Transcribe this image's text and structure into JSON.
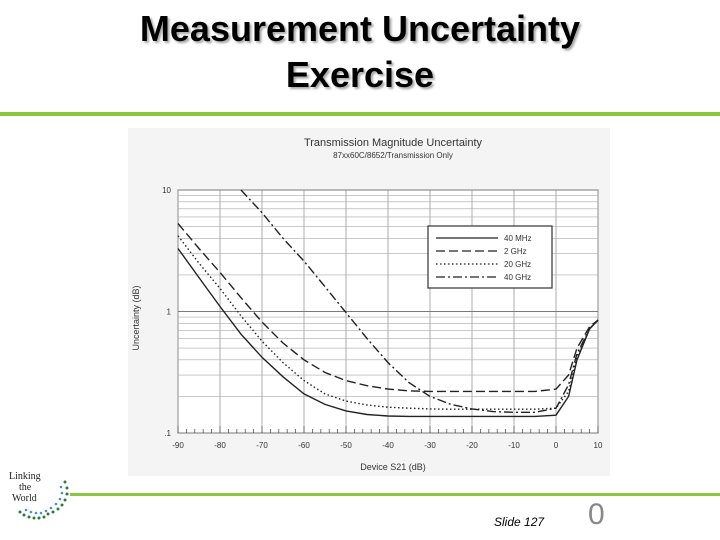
{
  "slide": {
    "title_line1": "Measurement Uncertainty",
    "title_line2": "Exercise",
    "slide_number": "Slide 127",
    "page_mark": "0",
    "logo_text": [
      "Linking",
      "the",
      "World"
    ],
    "accent_color": "#8cc63f"
  },
  "chart_data": {
    "type": "line",
    "title": "Transmission Magnitude Uncertainty",
    "subtitle": "87xx60C/8652/Transmission Only",
    "xlabel": "Device S21 (dB)",
    "ylabel": "Uncertainty (dB)",
    "xlim": [
      -90,
      10
    ],
    "ylim": [
      0.1,
      10
    ],
    "yscale": "log",
    "x_ticks": [
      "-90",
      "-80",
      "-70",
      "-60",
      "-50",
      "-40",
      "-30",
      "-20",
      "-10",
      "0",
      "10"
    ],
    "y_ticks": [
      "10",
      "1",
      ".1"
    ],
    "grid": true,
    "legend_position": "top-right",
    "series": [
      {
        "name": "40 MHz",
        "dash": "solid",
        "x": [
          -90,
          -85,
          -80,
          -75,
          -70,
          -65,
          -60,
          -55,
          -50,
          -45,
          -40,
          -35,
          -30,
          -25,
          -20,
          -15,
          -10,
          -5,
          0,
          3,
          5,
          8,
          10
        ],
        "y": [
          3.3,
          1.9,
          1.1,
          0.65,
          0.42,
          0.29,
          0.21,
          0.172,
          0.152,
          0.142,
          0.138,
          0.137,
          0.137,
          0.137,
          0.137,
          0.137,
          0.137,
          0.137,
          0.14,
          0.2,
          0.4,
          0.72,
          0.85
        ]
      },
      {
        "name": "2 GHz",
        "dash": "dashed",
        "x": [
          -90,
          -85,
          -80,
          -75,
          -70,
          -65,
          -60,
          -55,
          -50,
          -45,
          -40,
          -35,
          -30,
          -25,
          -20,
          -15,
          -10,
          -5,
          0,
          3,
          5,
          8,
          10
        ],
        "y": [
          5.3,
          3.3,
          2.1,
          1.3,
          0.82,
          0.55,
          0.4,
          0.315,
          0.27,
          0.245,
          0.23,
          0.222,
          0.22,
          0.22,
          0.22,
          0.22,
          0.22,
          0.22,
          0.23,
          0.3,
          0.5,
          0.75,
          0.85
        ]
      },
      {
        "name": "20 GHz",
        "dash": "dotted",
        "x": [
          -90,
          -85,
          -80,
          -75,
          -70,
          -65,
          -60,
          -55,
          -50,
          -45,
          -40,
          -35,
          -30,
          -25,
          -20,
          -15,
          -10,
          -5,
          0,
          3,
          5,
          8,
          10
        ],
        "y": [
          4.2,
          2.5,
          1.55,
          0.92,
          0.57,
          0.38,
          0.27,
          0.21,
          0.183,
          0.17,
          0.163,
          0.16,
          0.158,
          0.157,
          0.157,
          0.157,
          0.157,
          0.157,
          0.16,
          0.22,
          0.42,
          0.72,
          0.85
        ]
      },
      {
        "name": "40 GHz",
        "dash": "dashdot",
        "x": [
          -75,
          -70,
          -65,
          -60,
          -55,
          -50,
          -45,
          -40,
          -35,
          -30,
          -25,
          -20,
          -15,
          -10,
          -5,
          0,
          3,
          5,
          8,
          10
        ],
        "y": [
          10,
          6.5,
          4.0,
          2.6,
          1.6,
          0.98,
          0.6,
          0.38,
          0.26,
          0.2,
          0.172,
          0.158,
          0.15,
          0.148,
          0.148,
          0.16,
          0.25,
          0.45,
          0.72,
          0.85
        ]
      }
    ]
  }
}
